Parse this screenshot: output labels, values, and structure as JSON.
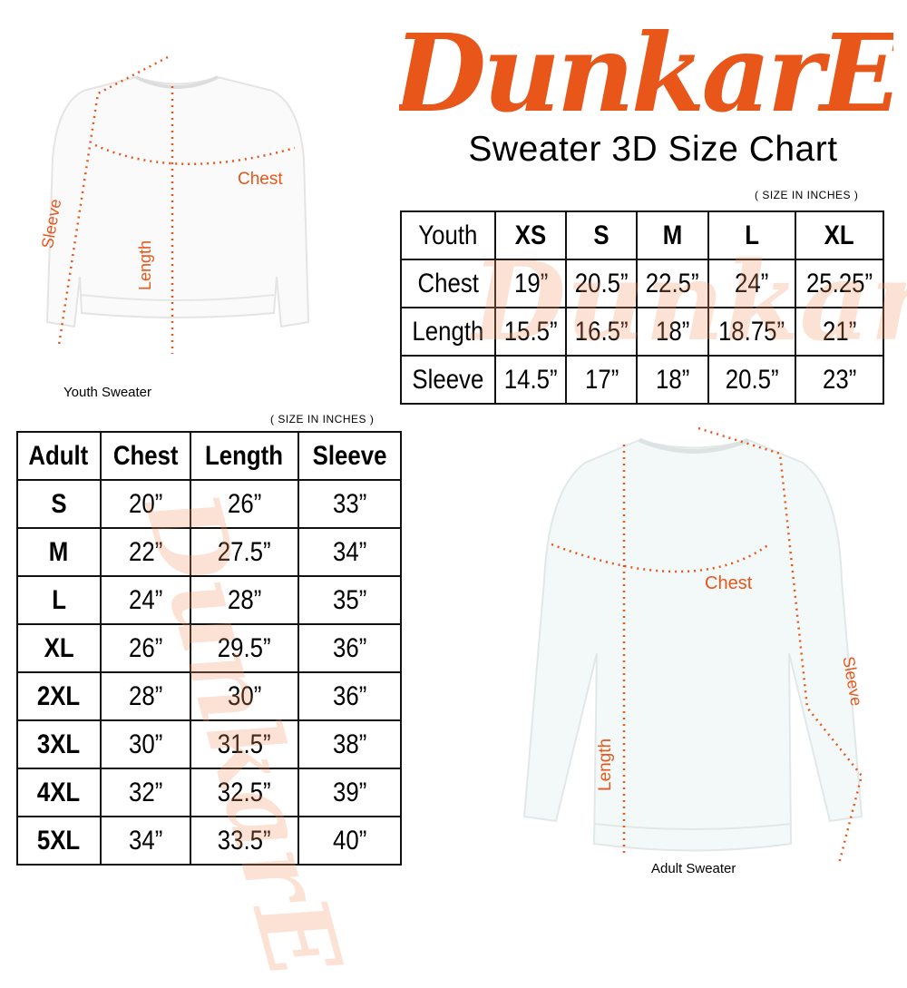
{
  "brand": {
    "logo_text": "DunkarE",
    "color": "#e8561a"
  },
  "title": "Sweater 3D Size Chart",
  "youth": {
    "note": "( SIZE IN INCHES )",
    "headers": [
      "Youth",
      "XS",
      "S",
      "M",
      "L",
      "XL"
    ],
    "rows": [
      [
        "Chest",
        "19”",
        "20.5”",
        "22.5”",
        "24”",
        "25.25”"
      ],
      [
        "Length",
        "15.5”",
        "16.5”",
        "18”",
        "18.75”",
        "21”"
      ],
      [
        "Sleeve",
        "14.5”",
        "17”",
        "18”",
        "20.5”",
        "23”"
      ]
    ],
    "image_label": "Youth Sweater",
    "measure_labels": {
      "chest": "Chest",
      "length": "Length",
      "sleeve": "Sleeve"
    }
  },
  "adult": {
    "note": "( SIZE IN INCHES )",
    "headers": [
      "Adult",
      "Chest",
      "Length",
      "Sleeve"
    ],
    "rows": [
      [
        "S",
        "20”",
        "26”",
        "33”"
      ],
      [
        "M",
        "22”",
        "27.5”",
        "34”"
      ],
      [
        "L",
        "24”",
        "28”",
        "35”"
      ],
      [
        "XL",
        "26”",
        "29.5”",
        "36”"
      ],
      [
        "2XL",
        "28”",
        "30”",
        "36”"
      ],
      [
        "3XL",
        "30”",
        "31.5”",
        "38”"
      ],
      [
        "4XL",
        "32”",
        "32.5”",
        "39”"
      ],
      [
        "5XL",
        "34”",
        "33.5”",
        "40”"
      ]
    ],
    "image_label": "Adult Sweater",
    "measure_labels": {
      "chest": "Chest",
      "length": "Length",
      "sleeve": "Sleeve"
    }
  }
}
